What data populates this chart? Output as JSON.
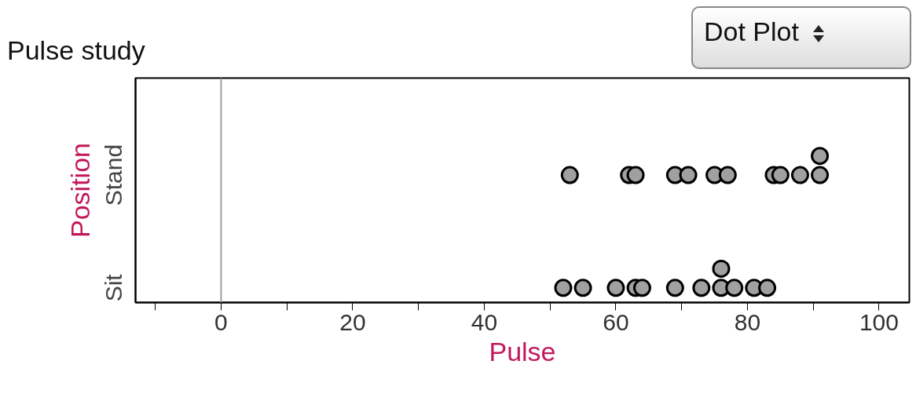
{
  "chart_data": {
    "type": "scatter",
    "orientation": "horizontal",
    "title": "Pulse study",
    "xlabel": "Pulse",
    "ylabel": "Position",
    "categories": [
      "Stand",
      "Sit"
    ],
    "series": [
      {
        "color": "#a0a0a0",
        "values": [
          53,
          52
        ]
      },
      {
        "color": "#a0a0a0",
        "values": [
          62,
          55
        ]
      },
      {
        "color": "#a0a0a0",
        "values": [
          63,
          60
        ]
      },
      {
        "color": "#a0a0a0",
        "values": [
          69,
          63
        ]
      },
      {
        "color": "#a0a0a0",
        "values": [
          71,
          64
        ]
      },
      {
        "color": "#a0a0a0",
        "values": [
          75,
          69
        ]
      },
      {
        "color": "#a0a0a0",
        "values": [
          77,
          73
        ]
      },
      {
        "color": "#a0a0a0",
        "values": [
          84,
          76
        ]
      },
      {
        "color": "#a0a0a0",
        "values": [
          85,
          76
        ]
      },
      {
        "color": "#a0a0a0",
        "values": [
          88,
          78
        ]
      },
      {
        "color": "#a0a0a0",
        "values": [
          91,
          81
        ]
      },
      {
        "color": "#a0a0a0",
        "values": [
          91,
          83
        ]
      }
    ],
    "xlim": [
      -13,
      104.6
    ],
    "xticks": [
      {
        "value": -10,
        "label": null
      },
      0,
      {
        "value": 10,
        "label": null
      },
      20,
      {
        "value": 30,
        "label": null
      },
      40,
      {
        "value": 50,
        "label": null
      },
      60,
      {
        "value": 70,
        "label": null
      },
      80,
      {
        "value": 90,
        "label": null
      },
      100
    ],
    "ref_lines": [
      {
        "axis": "x",
        "value": 0,
        "color": "#a0a0a0"
      }
    ],
    "annotations": [
      "Dot Plot"
    ],
    "marker": "circle",
    "grid": false
  }
}
